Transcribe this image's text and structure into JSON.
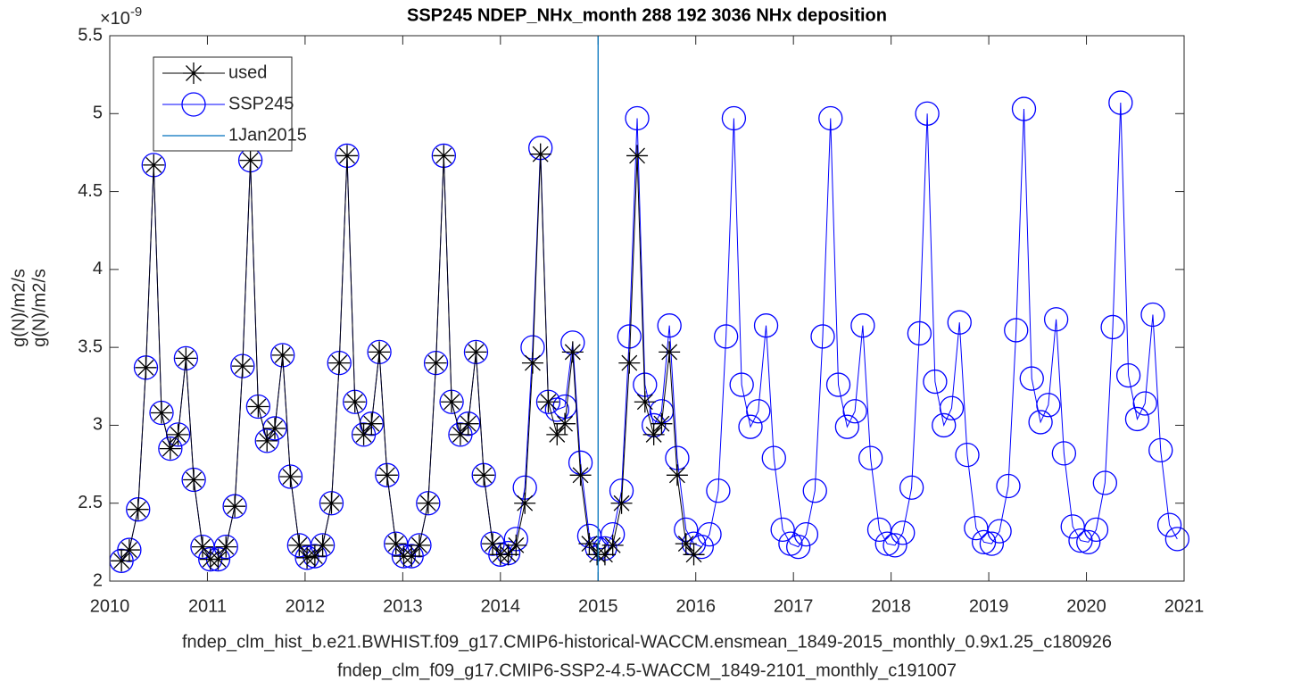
{
  "chart_data": {
    "type": "line",
    "title": "SSP245 NDEP_NHx_month  288 192 3036   NHx deposition",
    "y_multiplier": "×10",
    "y_multiplier_exponent": "-9",
    "y_label": [
      "g(N)/m2/s",
      "g(N)/m2/s"
    ],
    "x_label": [
      "fndep_clm_hist_b.e21.BWHIST.f09_g17.CMIP6-historical-WACCM.ensmean_1849-2015_monthly_0.9x1.25_c180926",
      "fndep_clm_f09_g17.CMIP6-SSP2-4.5-WACCM_1849-2101_monthly_c191007"
    ],
    "xlim": [
      2010,
      2021
    ],
    "xticks": [
      2010,
      2011,
      2012,
      2013,
      2014,
      2015,
      2016,
      2017,
      2018,
      2019,
      2020,
      2021
    ],
    "ylim": [
      2,
      5.5
    ],
    "yticks": [
      2,
      2.5,
      3,
      3.5,
      4,
      4.5,
      5,
      5.5
    ],
    "grid": false,
    "legend_position": "upper-left",
    "x": [
      2010.12,
      2010.2,
      2010.29,
      2010.37,
      2010.45,
      2010.53,
      2010.62,
      2010.7,
      2010.78,
      2010.86,
      2010.95,
      2011.03,
      2011.11,
      2011.19,
      2011.28,
      2011.36,
      2011.44,
      2011.52,
      2011.61,
      2011.69,
      2011.77,
      2011.85,
      2011.94,
      2012.02,
      2012.1,
      2012.18,
      2012.27,
      2012.35,
      2012.43,
      2012.51,
      2012.6,
      2012.68,
      2012.76,
      2012.84,
      2012.93,
      2013.01,
      2013.09,
      2013.17,
      2013.26,
      2013.34,
      2013.42,
      2013.5,
      2013.59,
      2013.67,
      2013.75,
      2013.83,
      2013.92,
      2014.0,
      2014.08,
      2014.16,
      2014.25,
      2014.33,
      2014.41,
      2014.49,
      2014.58,
      2014.66,
      2014.74,
      2014.82,
      2014.91,
      2014.99,
      2015.07,
      2015.15,
      2015.24,
      2015.32,
      2015.4,
      2015.48,
      2015.57,
      2015.65,
      2015.73,
      2015.81,
      2015.9,
      2015.98,
      2016.06,
      2016.14,
      2016.23,
      2016.31,
      2016.39,
      2016.47,
      2016.56,
      2016.64,
      2016.72,
      2016.8,
      2016.89,
      2016.97,
      2017.05,
      2017.13,
      2017.22,
      2017.3,
      2017.38,
      2017.46,
      2017.55,
      2017.63,
      2017.71,
      2017.79,
      2017.88,
      2017.96,
      2018.04,
      2018.12,
      2018.21,
      2018.29,
      2018.37,
      2018.45,
      2018.54,
      2018.62,
      2018.7,
      2018.78,
      2018.87,
      2018.95,
      2019.03,
      2019.11,
      2019.2,
      2019.28,
      2019.36,
      2019.44,
      2019.53,
      2019.61,
      2019.69,
      2019.77,
      2019.86,
      2019.94,
      2020.02,
      2020.1,
      2020.19,
      2020.27,
      2020.35,
      2020.43,
      2020.52,
      2020.6,
      2020.68,
      2020.76,
      2020.85,
      2020.93
    ],
    "series": [
      {
        "name": "used",
        "color": "#000000",
        "marker": "asterisk",
        "values": [
          2.13,
          2.2,
          2.46,
          3.37,
          4.67,
          3.08,
          2.85,
          2.94,
          3.43,
          2.65,
          2.22,
          2.14,
          2.14,
          2.22,
          2.48,
          3.38,
          4.7,
          3.12,
          2.9,
          2.98,
          3.45,
          2.67,
          2.23,
          2.15,
          2.16,
          2.23,
          2.5,
          3.4,
          4.73,
          3.15,
          2.94,
          3.01,
          3.47,
          2.68,
          2.24,
          2.16,
          2.16,
          2.23,
          2.5,
          3.4,
          4.73,
          3.15,
          2.94,
          3.01,
          3.47,
          2.68,
          2.24,
          2.17,
          2.17,
          2.23,
          2.5,
          3.4,
          4.74,
          3.15,
          2.94,
          3.01,
          3.47,
          2.68,
          2.24,
          2.17,
          2.17,
          2.23,
          2.5,
          3.4,
          4.73,
          3.15,
          2.94,
          3.01,
          3.47,
          2.68,
          2.24,
          2.17,
          null,
          null,
          null,
          null,
          null,
          null,
          null,
          null,
          null,
          null,
          null,
          null,
          null,
          null,
          null,
          null,
          null,
          null,
          null,
          null,
          null,
          null,
          null,
          null,
          null,
          null,
          null,
          null,
          null,
          null,
          null,
          null,
          null,
          null,
          null,
          null,
          null,
          null,
          null,
          null,
          null,
          null,
          null,
          null,
          null,
          null,
          null,
          null,
          null,
          null,
          null,
          null,
          null,
          null,
          null,
          null,
          null,
          null,
          null,
          null
        ]
      },
      {
        "name": "SSP245",
        "color": "#0000ff",
        "marker": "circle",
        "values": [
          2.13,
          2.2,
          2.46,
          3.37,
          4.67,
          3.08,
          2.85,
          2.94,
          3.43,
          2.65,
          2.22,
          2.14,
          2.14,
          2.22,
          2.48,
          3.38,
          4.7,
          3.12,
          2.9,
          2.98,
          3.45,
          2.67,
          2.23,
          2.15,
          2.16,
          2.23,
          2.5,
          3.4,
          4.73,
          3.15,
          2.94,
          3.01,
          3.47,
          2.68,
          2.24,
          2.16,
          2.16,
          2.23,
          2.5,
          3.4,
          4.73,
          3.15,
          2.94,
          3.01,
          3.47,
          2.68,
          2.24,
          2.17,
          2.18,
          2.27,
          2.6,
          3.5,
          4.78,
          3.15,
          3.1,
          3.12,
          3.53,
          2.76,
          2.29,
          2.21,
          2.21,
          2.3,
          2.58,
          3.57,
          4.97,
          3.26,
          3.0,
          3.09,
          3.64,
          2.79,
          2.33,
          2.24,
          2.22,
          2.3,
          2.58,
          3.57,
          4.97,
          3.26,
          2.99,
          3.09,
          3.64,
          2.79,
          2.33,
          2.24,
          2.22,
          2.3,
          2.58,
          3.57,
          4.97,
          3.26,
          2.99,
          3.09,
          3.64,
          2.79,
          2.33,
          2.24,
          2.23,
          2.31,
          2.6,
          3.59,
          5.0,
          3.28,
          3.0,
          3.11,
          3.66,
          2.81,
          2.34,
          2.25,
          2.24,
          2.32,
          2.61,
          3.61,
          5.03,
          3.3,
          3.02,
          3.13,
          3.68,
          2.82,
          2.35,
          2.26,
          2.25,
          2.33,
          2.63,
          3.63,
          5.07,
          3.32,
          3.04,
          3.14,
          3.71,
          2.84,
          2.36,
          2.27
        ]
      }
    ],
    "vlines": [
      {
        "name": "1Jan2015",
        "x": 2015,
        "color": "#0072bd"
      }
    ]
  }
}
